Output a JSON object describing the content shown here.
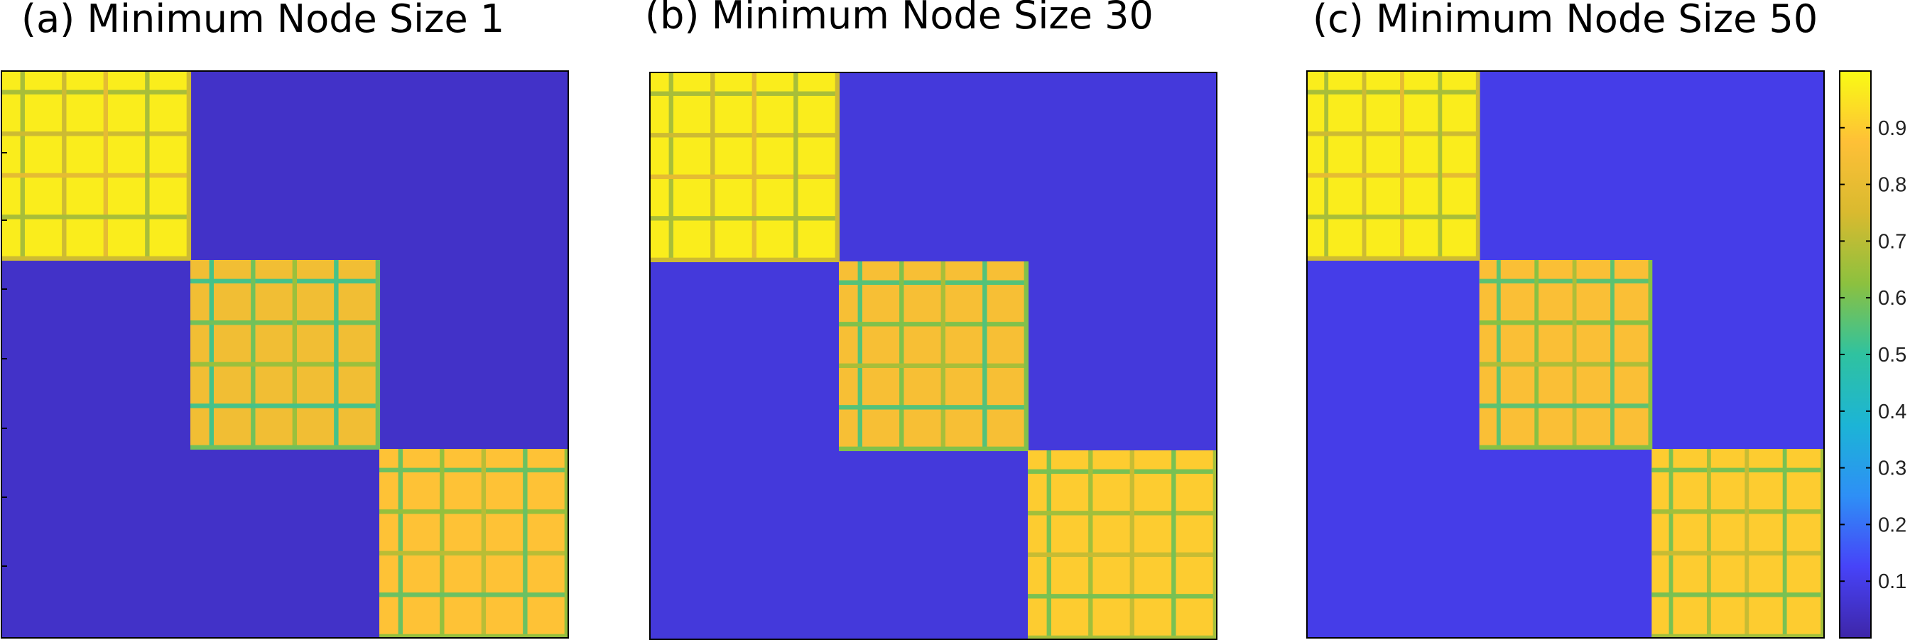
{
  "figure": {
    "panels": [
      {
        "title": "(a) Minimum Node Size 1"
      },
      {
        "title": "(b) Minimum Node Size 30"
      },
      {
        "title": "(c) Minimum Node Size 50"
      }
    ],
    "colorbar": {
      "ticks": [
        {
          "value": 0.1,
          "label": "0.1"
        },
        {
          "value": 0.2,
          "label": "0.2"
        },
        {
          "value": 0.3,
          "label": "0.3"
        },
        {
          "value": 0.4,
          "label": "0.4"
        },
        {
          "value": 0.5,
          "label": "0.5"
        },
        {
          "value": 0.6,
          "label": "0.6"
        },
        {
          "value": 0.7,
          "label": "0.7"
        },
        {
          "value": 0.8,
          "label": "0.8"
        },
        {
          "value": 0.9,
          "label": "0.9"
        }
      ]
    }
  },
  "chart_data": [
    {
      "type": "heatmap",
      "title": "(a) Minimum Node Size 1",
      "clim": [
        0,
        1
      ],
      "colormap": [
        "#3e26a8",
        "#4743f8",
        "#2e8ff6",
        "#1cb4d6",
        "#2fc2a0",
        "#8cc13f",
        "#d9ba2f",
        "#fec037",
        "#f9fb14"
      ],
      "size": 150,
      "blocks": [
        {
          "rows": [
            0,
            50
          ],
          "cols": [
            0,
            50
          ],
          "value": 0.97
        },
        {
          "rows": [
            50,
            100
          ],
          "cols": [
            50,
            100
          ],
          "value": 0.83
        },
        {
          "rows": [
            100,
            150
          ],
          "cols": [
            100,
            150
          ],
          "value": 0.88
        }
      ],
      "background_value": 0.05
    },
    {
      "type": "heatmap",
      "title": "(b) Minimum Node Size 30",
      "clim": [
        0,
        1
      ],
      "colormap": [
        "#3e26a8",
        "#4743f8",
        "#2e8ff6",
        "#1cb4d6",
        "#2fc2a0",
        "#8cc13f",
        "#d9ba2f",
        "#fec037",
        "#f9fb14"
      ],
      "size": 150,
      "blocks": [
        {
          "rows": [
            0,
            50
          ],
          "cols": [
            0,
            50
          ],
          "value": 0.97
        },
        {
          "rows": [
            50,
            100
          ],
          "cols": [
            50,
            100
          ],
          "value": 0.85
        },
        {
          "rows": [
            100,
            150
          ],
          "cols": [
            100,
            150
          ],
          "value": 0.9
        }
      ],
      "background_value": 0.08
    },
    {
      "type": "heatmap",
      "title": "(c) Minimum Node Size 50",
      "clim": [
        0,
        1
      ],
      "colormap": [
        "#3e26a8",
        "#4743f8",
        "#2e8ff6",
        "#1cb4d6",
        "#2fc2a0",
        "#8cc13f",
        "#d9ba2f",
        "#fec037",
        "#f9fb14"
      ],
      "size": 150,
      "blocks": [
        {
          "rows": [
            0,
            50
          ],
          "cols": [
            0,
            50
          ],
          "value": 0.97
        },
        {
          "rows": [
            50,
            100
          ],
          "cols": [
            50,
            100
          ],
          "value": 0.86
        },
        {
          "rows": [
            100,
            150
          ],
          "cols": [
            100,
            150
          ],
          "value": 0.9
        }
      ],
      "background_value": 0.1
    }
  ]
}
